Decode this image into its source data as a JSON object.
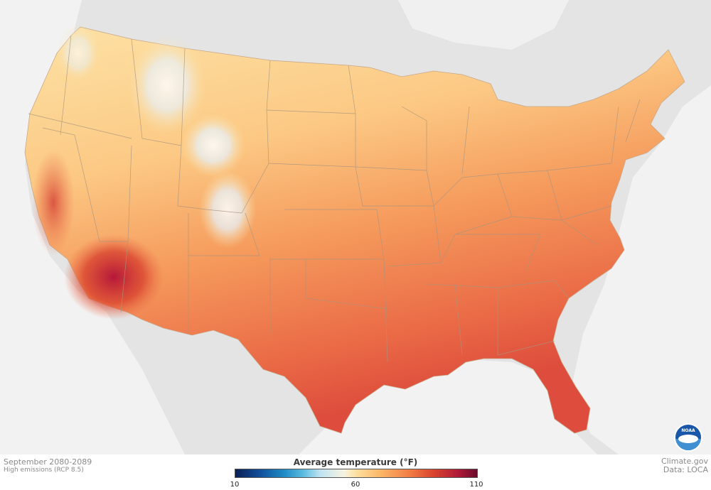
{
  "map": {
    "legend_title": "Average temperature (°F)",
    "legend_ticks": [
      "10",
      "60",
      "110"
    ],
    "legend_range": [
      10,
      110
    ],
    "colormap": [
      "#0b1f55",
      "#114e9a",
      "#1f8ac4",
      "#5bbbe0",
      "#bfe3f2",
      "#f7f3df",
      "#fde0a0",
      "#fbb768",
      "#f27d45",
      "#d9432f",
      "#b01a37",
      "#6b0b2e"
    ],
    "period": "September 2080-2089",
    "scenario": "High emissions (RCP 8.5)",
    "credit": "Climate.gov",
    "source": "Data: LOCA",
    "logo_text": "NOAA",
    "land_color": "#e4e4e4",
    "water_color": "#f2f2f2"
  }
}
